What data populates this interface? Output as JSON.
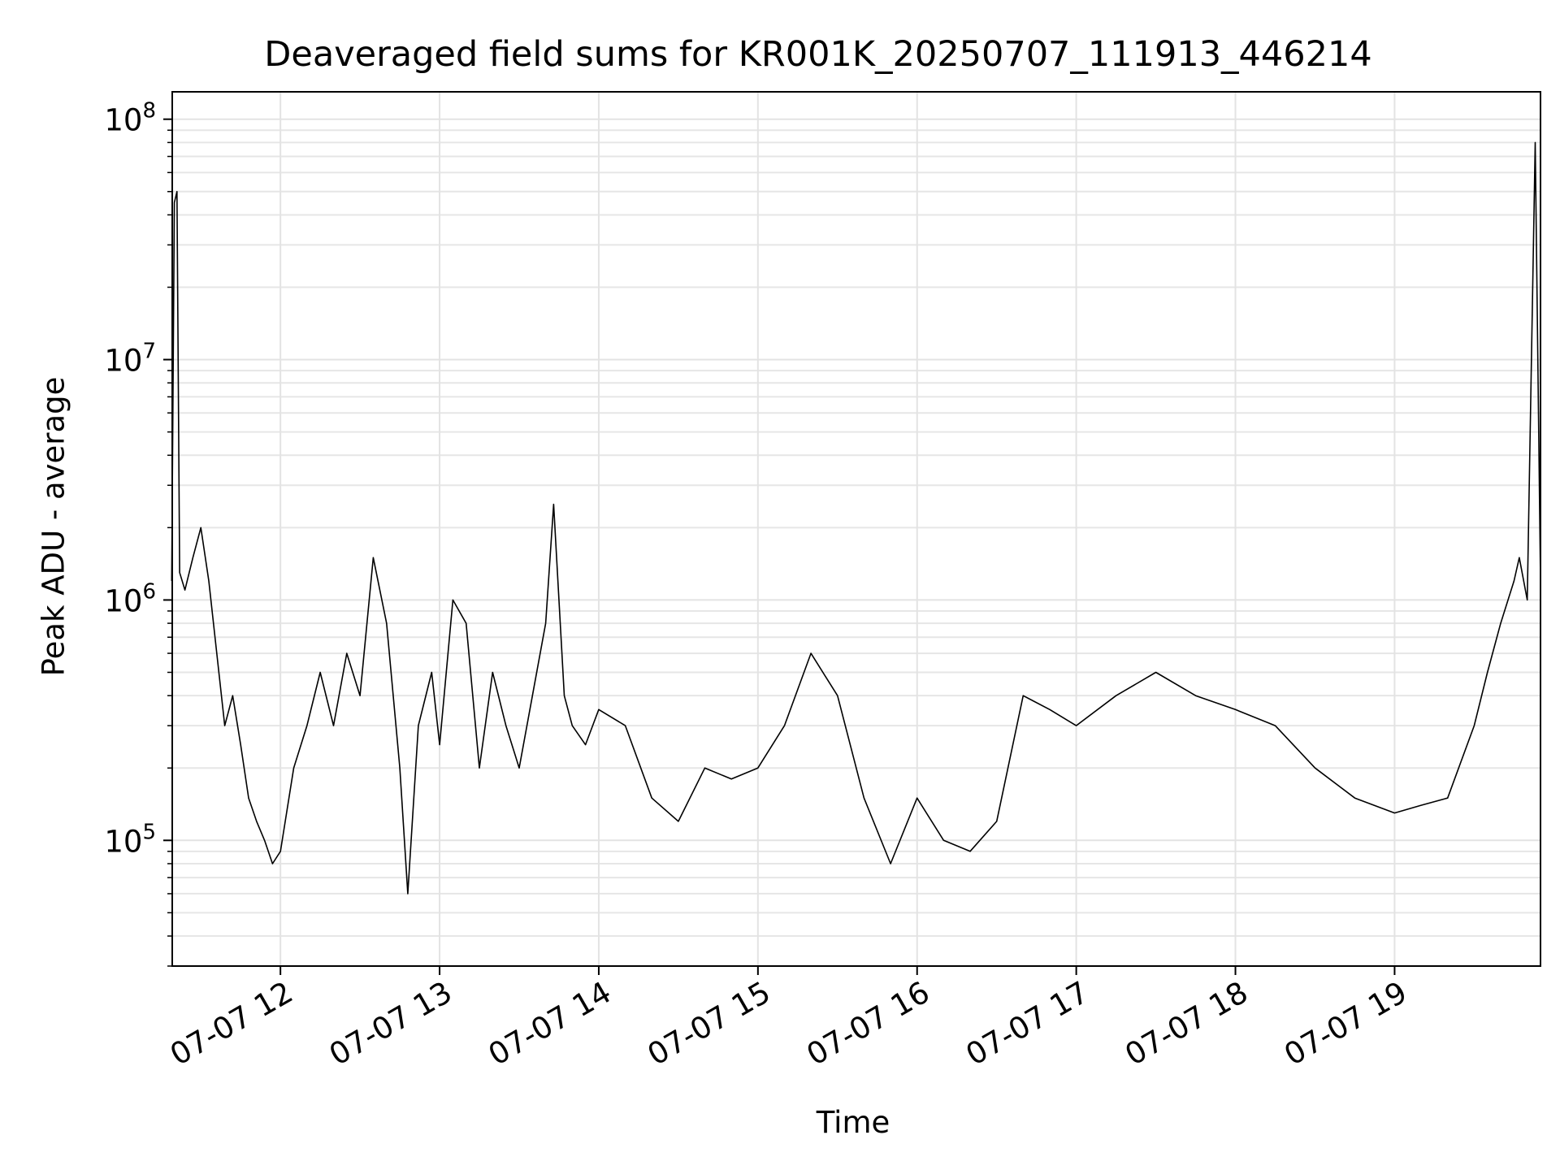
{
  "chart_data": {
    "type": "line",
    "title": "Deaveraged field sums for KR001K_20250707_111913_446214",
    "xlabel": "Time",
    "ylabel": "Peak ADU - average",
    "yscale": "log",
    "grid": "on (major and minor)",
    "line_color": "#000000",
    "x_range": [
      "2025-07-07 11:19:13",
      "2025-07-07 19:55:00"
    ],
    "ylim": [
      30000,
      130000000
    ],
    "x_ticks": [
      "07-07 12",
      "07-07 13",
      "07-07 14",
      "07-07 15",
      "07-07 16",
      "07-07 17",
      "07-07 18",
      "07-07 19"
    ],
    "y_ticks": [
      {
        "base": "10",
        "exp": "5",
        "value": 100000
      },
      {
        "base": "10",
        "exp": "6",
        "value": 1000000
      },
      {
        "base": "10",
        "exp": "7",
        "value": 10000000
      },
      {
        "base": "10",
        "exp": "8",
        "value": 100000000
      }
    ],
    "series": [
      {
        "x": [
          "2025-07-07 11:19",
          "2025-07-07 11:20",
          "2025-07-07 11:21",
          "2025-07-07 11:22",
          "2025-07-07 11:24",
          "2025-07-07 11:27",
          "2025-07-07 11:30",
          "2025-07-07 11:33",
          "2025-07-07 11:36",
          "2025-07-07 11:39",
          "2025-07-07 11:42",
          "2025-07-07 11:45",
          "2025-07-07 11:48",
          "2025-07-07 11:51",
          "2025-07-07 11:54",
          "2025-07-07 11:57",
          "2025-07-07 12:00",
          "2025-07-07 12:05",
          "2025-07-07 12:10",
          "2025-07-07 12:15",
          "2025-07-07 12:20",
          "2025-07-07 12:25",
          "2025-07-07 12:30",
          "2025-07-07 12:35",
          "2025-07-07 12:40",
          "2025-07-07 12:45",
          "2025-07-07 12:48",
          "2025-07-07 12:52",
          "2025-07-07 12:57",
          "2025-07-07 13:00",
          "2025-07-07 13:05",
          "2025-07-07 13:10",
          "2025-07-07 13:15",
          "2025-07-07 13:20",
          "2025-07-07 13:25",
          "2025-07-07 13:30",
          "2025-07-07 13:35",
          "2025-07-07 13:40",
          "2025-07-07 13:43",
          "2025-07-07 13:47",
          "2025-07-07 13:50",
          "2025-07-07 13:55",
          "2025-07-07 14:00",
          "2025-07-07 14:10",
          "2025-07-07 14:20",
          "2025-07-07 14:30",
          "2025-07-07 14:40",
          "2025-07-07 14:50",
          "2025-07-07 15:00",
          "2025-07-07 15:10",
          "2025-07-07 15:20",
          "2025-07-07 15:30",
          "2025-07-07 15:40",
          "2025-07-07 15:50",
          "2025-07-07 16:00",
          "2025-07-07 16:10",
          "2025-07-07 16:20",
          "2025-07-07 16:30",
          "2025-07-07 16:40",
          "2025-07-07 16:50",
          "2025-07-07 17:00",
          "2025-07-07 17:15",
          "2025-07-07 17:30",
          "2025-07-07 17:45",
          "2025-07-07 18:00",
          "2025-07-07 18:15",
          "2025-07-07 18:30",
          "2025-07-07 18:45",
          "2025-07-07 19:00",
          "2025-07-07 19:10",
          "2025-07-07 19:20",
          "2025-07-07 19:30",
          "2025-07-07 19:35",
          "2025-07-07 19:40",
          "2025-07-07 19:45",
          "2025-07-07 19:47",
          "2025-07-07 19:50",
          "2025-07-07 19:53",
          "2025-07-07 19:55"
        ],
        "y": [
          1200000,
          45000000,
          50000000,
          1300000,
          1100000,
          1500000,
          2000000,
          1200000,
          600000,
          300000,
          400000,
          250000,
          150000,
          120000,
          100000,
          80000,
          90000,
          200000,
          300000,
          500000,
          300000,
          600000,
          400000,
          1500000,
          800000,
          200000,
          60000,
          300000,
          500000,
          250000,
          1000000,
          800000,
          200000,
          500000,
          300000,
          200000,
          400000,
          800000,
          2500000,
          400000,
          300000,
          250000,
          350000,
          300000,
          150000,
          120000,
          200000,
          180000,
          200000,
          300000,
          600000,
          400000,
          150000,
          80000,
          150000,
          100000,
          90000,
          120000,
          400000,
          350000,
          300000,
          400000,
          500000,
          400000,
          350000,
          300000,
          200000,
          150000,
          130000,
          140000,
          150000,
          300000,
          500000,
          800000,
          1200000,
          1500000,
          1000000,
          80000000,
          1200000
        ]
      }
    ]
  }
}
